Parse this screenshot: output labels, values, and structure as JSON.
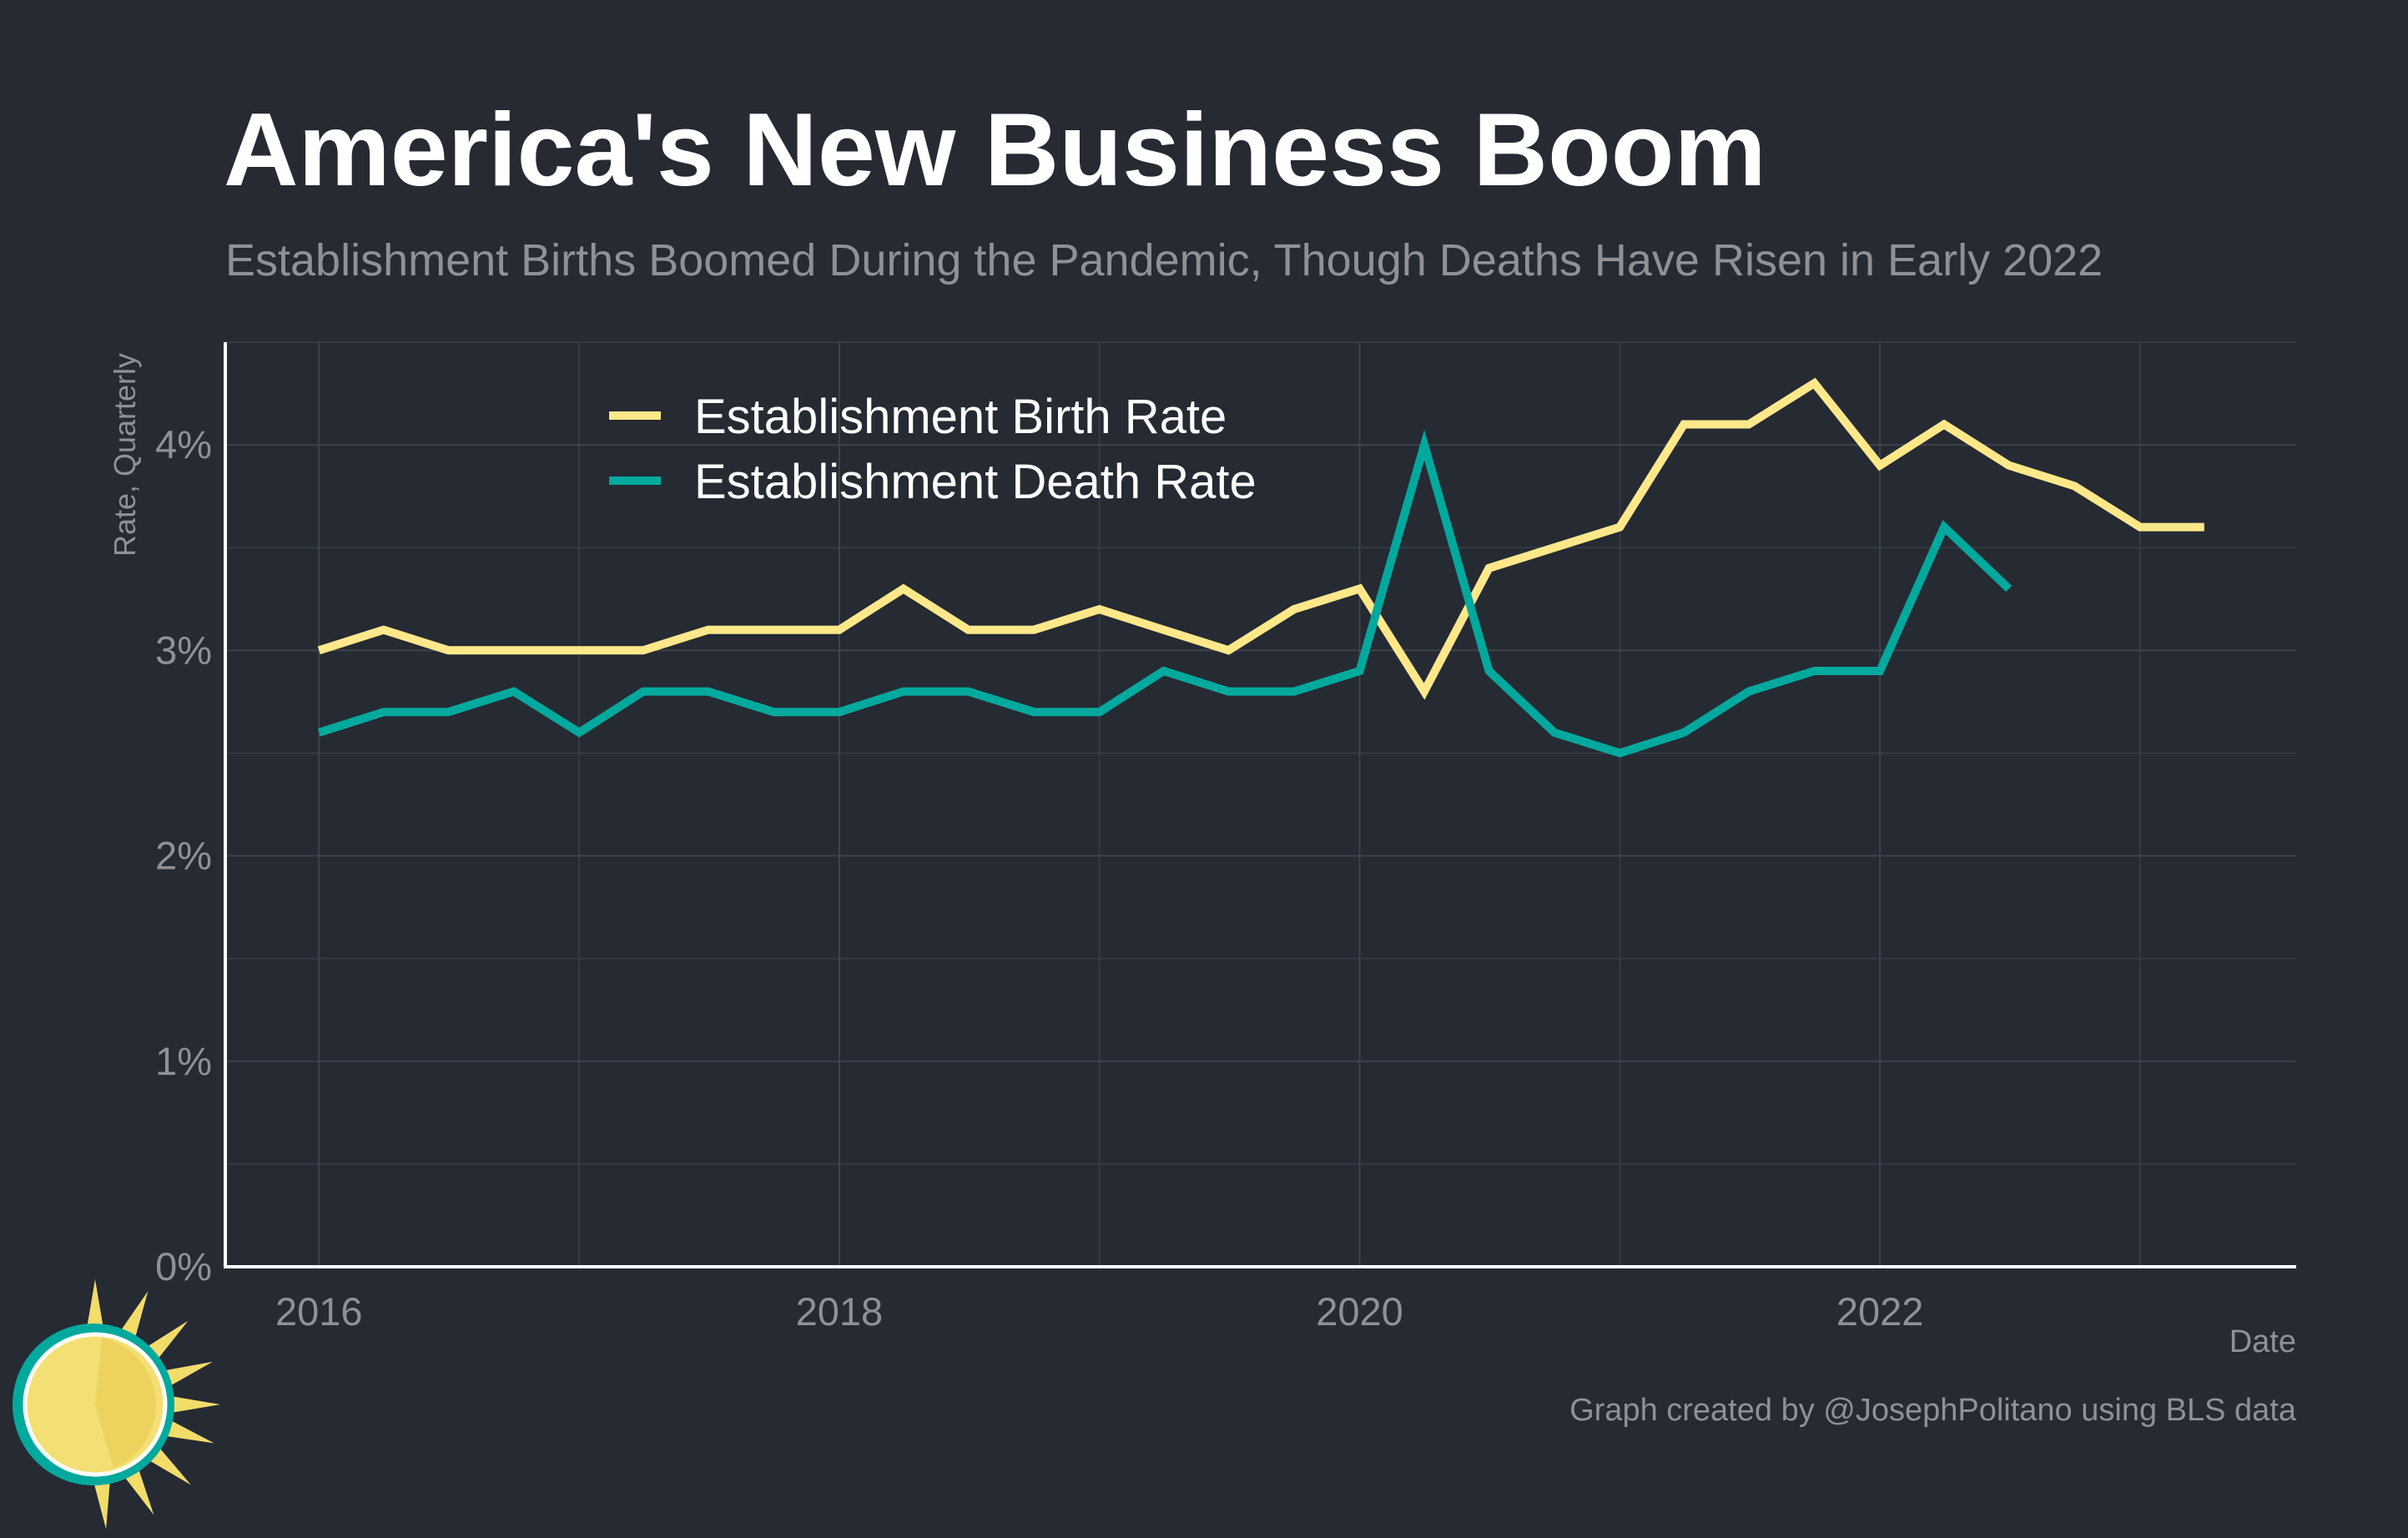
{
  "title": "America's New Business Boom",
  "subtitle": "Establishment Births Boomed During the Pandemic, Though Deaths Have Risen in Early 2022",
  "caption": "Graph created by @JosephPolitano using BLS data",
  "logo": "sun-logo-icon",
  "colors": {
    "background": "#252a33",
    "birth": "#ffe88a",
    "death": "#00a99d",
    "text_primary": "#ffffff",
    "text_secondary": "#8e9197"
  },
  "chart_data": {
    "type": "line",
    "xlabel": "Date",
    "ylabel": "Rate, Quarterly",
    "xlim": [
      2015.64,
      2023.6
    ],
    "ylim": [
      0,
      4.5
    ],
    "x_ticks": [
      {
        "value": 2016,
        "label": "2016"
      },
      {
        "value": 2018,
        "label": "2018"
      },
      {
        "value": 2020,
        "label": "2020"
      },
      {
        "value": 2022,
        "label": "2022"
      }
    ],
    "x_minor_grid": [
      2017,
      2019,
      2021,
      2023
    ],
    "y_ticks": [
      {
        "value": 0,
        "label": "0%"
      },
      {
        "value": 1,
        "label": "1%"
      },
      {
        "value": 2,
        "label": "2%"
      },
      {
        "value": 3,
        "label": "3%"
      },
      {
        "value": 4,
        "label": "4%"
      }
    ],
    "y_minor_grid": [
      0.5,
      1.5,
      2.5,
      3.5,
      4.5
    ],
    "grid": true,
    "legend_position": "top-left",
    "series": [
      {
        "name": "Establishment Birth Rate",
        "color": "#ffe88a",
        "x": [
          "2016-01-01",
          "2016-04-01",
          "2016-07-01",
          "2016-10-01",
          "2017-01-01",
          "2017-04-01",
          "2017-07-01",
          "2017-10-01",
          "2018-01-01",
          "2018-04-01",
          "2018-07-01",
          "2018-10-01",
          "2019-01-01",
          "2019-04-01",
          "2019-07-01",
          "2019-10-01",
          "2020-01-01",
          "2020-04-01",
          "2020-07-01",
          "2020-10-01",
          "2021-01-01",
          "2021-04-01",
          "2021-07-01",
          "2021-10-01",
          "2022-01-01",
          "2022-04-01",
          "2022-07-01",
          "2022-10-01",
          "2023-01-01",
          "2023-04-01"
        ],
        "values": [
          3.0,
          3.1,
          3.0,
          3.0,
          3.0,
          3.0,
          3.1,
          3.1,
          3.1,
          3.3,
          3.1,
          3.1,
          3.2,
          3.1,
          3.0,
          3.2,
          3.3,
          2.8,
          3.4,
          3.5,
          3.6,
          4.1,
          4.1,
          4.3,
          3.9,
          4.1,
          3.9,
          3.8,
          3.6,
          3.6
        ]
      },
      {
        "name": "Establishment Death Rate",
        "color": "#00a99d",
        "x": [
          "2016-01-01",
          "2016-04-01",
          "2016-07-01",
          "2016-10-01",
          "2017-01-01",
          "2017-04-01",
          "2017-07-01",
          "2017-10-01",
          "2018-01-01",
          "2018-04-01",
          "2018-07-01",
          "2018-10-01",
          "2019-01-01",
          "2019-04-01",
          "2019-07-01",
          "2019-10-01",
          "2020-01-01",
          "2020-04-01",
          "2020-07-01",
          "2020-10-01",
          "2021-01-01",
          "2021-04-01",
          "2021-07-01",
          "2021-10-01",
          "2022-01-01",
          "2022-04-01",
          "2022-07-01"
        ],
        "values": [
          2.6,
          2.7,
          2.7,
          2.8,
          2.6,
          2.8,
          2.8,
          2.7,
          2.7,
          2.8,
          2.8,
          2.7,
          2.7,
          2.9,
          2.8,
          2.8,
          2.9,
          4.0,
          2.9,
          2.6,
          2.5,
          2.6,
          2.8,
          2.9,
          2.9,
          3.6,
          3.3
        ]
      }
    ]
  }
}
